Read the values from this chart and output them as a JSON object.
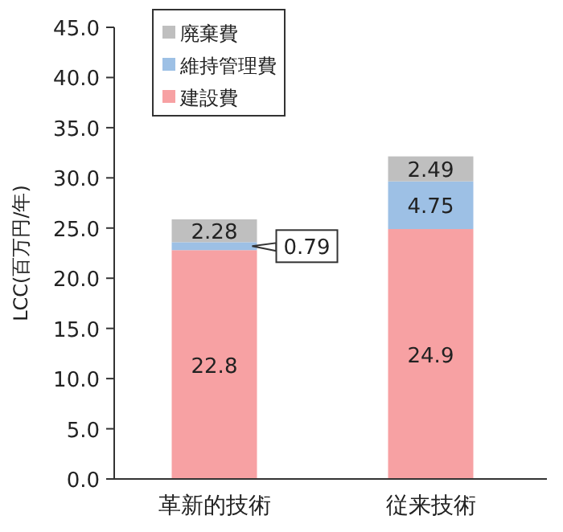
{
  "chart_data": {
    "type": "bar",
    "stacked": true,
    "ylabel": "LCC(百万円/年)",
    "categories": [
      "革新的技術",
      "従来技術"
    ],
    "series": [
      {
        "name": "建設費",
        "color": "#f7a1a3",
        "values": [
          22.8,
          24.9
        ]
      },
      {
        "name": "維持管理費",
        "color": "#9dc0e5",
        "values": [
          0.79,
          4.75
        ]
      },
      {
        "name": "廃棄費",
        "color": "#bfbfbf",
        "values": [
          2.28,
          2.49
        ]
      }
    ],
    "ylim": [
      0,
      45
    ],
    "yticks": [
      {
        "value": 0,
        "label": "0.0"
      },
      {
        "value": 5,
        "label": "5.0"
      },
      {
        "value": 10,
        "label": "10.0"
      },
      {
        "value": 15,
        "label": "15.0"
      },
      {
        "value": 20,
        "label": "20.0"
      },
      {
        "value": 25,
        "label": "25.0"
      },
      {
        "value": 30,
        "label": "30.0"
      },
      {
        "value": 35,
        "label": "35.0"
      },
      {
        "value": 40,
        "label": "40.0"
      },
      {
        "value": 45,
        "label": "45.0"
      }
    ],
    "data_labels": true,
    "legend": "top left",
    "grid": false
  }
}
